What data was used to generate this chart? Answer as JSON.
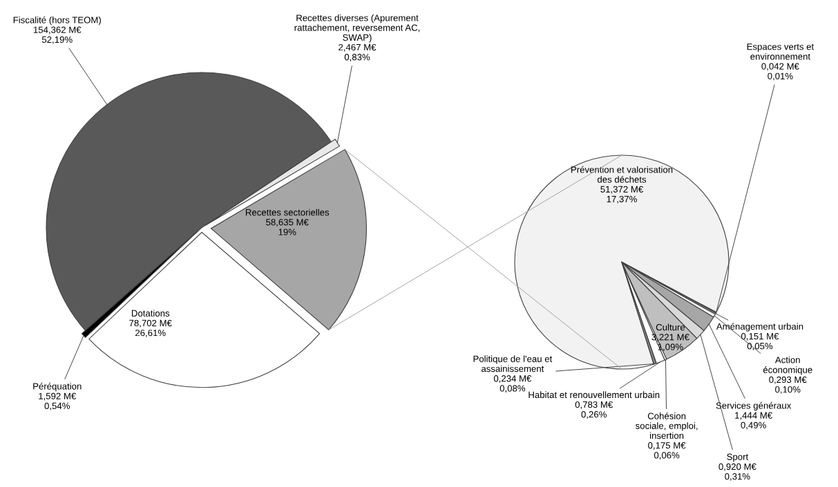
{
  "chart_data": [
    {
      "type": "pie",
      "categories": [
        "Fiscalité (hors TEOM)",
        "Recettes diverses (Apurement\nrattachement, reversement AC,\nSWAP)",
        "Recettes sectorielles",
        "Dotations",
        "Péréquation"
      ],
      "values": [
        154.362,
        2.467,
        58.635,
        78.702,
        1.592
      ],
      "colors": [
        "#595959",
        "#e8e8e8",
        "#a6a6a6",
        "#ffffff",
        "#000000"
      ],
      "value_labels": [
        "154,362 M€\n52,19%",
        "2,467 M€\n0,83%",
        "58,635 M€\n19%",
        "78,702 M€\n26,61%",
        "1,592 M€\n0,54%"
      ]
    },
    {
      "type": "pie",
      "categories": [
        "Prévention et valorisation\ndes déchets",
        "Espaces verts et\nenvironnement",
        "Aménagement urbain",
        "Action\néconomique",
        "Services généraux",
        "Sport",
        "Culture",
        "Cohésion\nsociale, emploi,\ninsertion",
        "Habitat et renouvellement urbain",
        "Politique de l'eau et\nassainissement"
      ],
      "values": [
        51.372,
        0.042,
        0.151,
        0.293,
        1.444,
        0.92,
        3.221,
        0.175,
        0.783,
        0.234
      ],
      "colors": [
        "#f2f2f2",
        "#595959",
        "#808080",
        "#ffffff",
        "#a6a6a6",
        "#d9d9d9",
        "#bfbfbf",
        "#ffffff",
        "#ffffff",
        "#7f7f7f"
      ],
      "value_labels": [
        "51,372 M€\n17,37%",
        "0,042 M€\n0,01%",
        "0,151 M€\n0,05%",
        "0,293 M€\n0,10%",
        "1,444 M€\n0,49%",
        "0,920 M€\n0,31%",
        "3,221 M€\n1,09%",
        "0,175 M€\n0,06%",
        "0,783 M€\n0,26%",
        "0,234 M€\n0,08%"
      ]
    }
  ]
}
